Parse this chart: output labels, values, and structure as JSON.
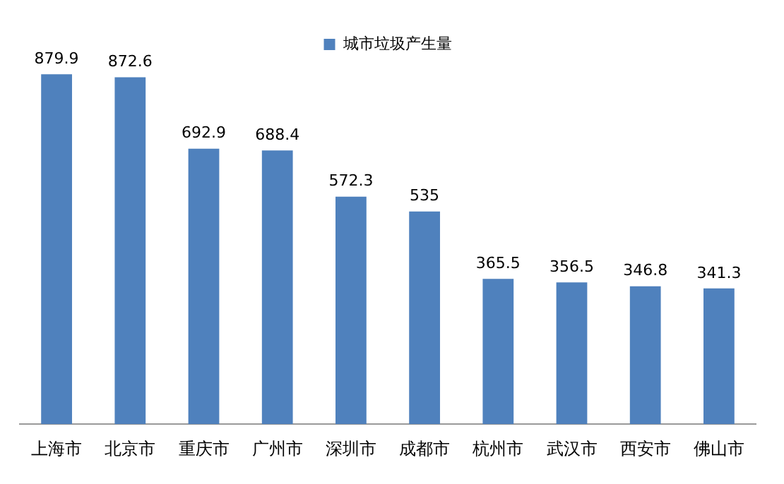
{
  "chart_data": {
    "type": "bar",
    "categories": [
      "上海市",
      "北京市",
      "重庆市",
      "广州市",
      "深圳市",
      "成都市",
      "杭州市",
      "武汉市",
      "西安市",
      "佛山市"
    ],
    "series": [
      {
        "name": "城市垃圾产生量",
        "color": "#4f81bd",
        "values": [
          879.9,
          872.6,
          692.9,
          688.4,
          572.3,
          535,
          365.5,
          356.5,
          346.8,
          341.3
        ]
      }
    ],
    "data_labels": true,
    "legend": "top",
    "grid": false
  }
}
